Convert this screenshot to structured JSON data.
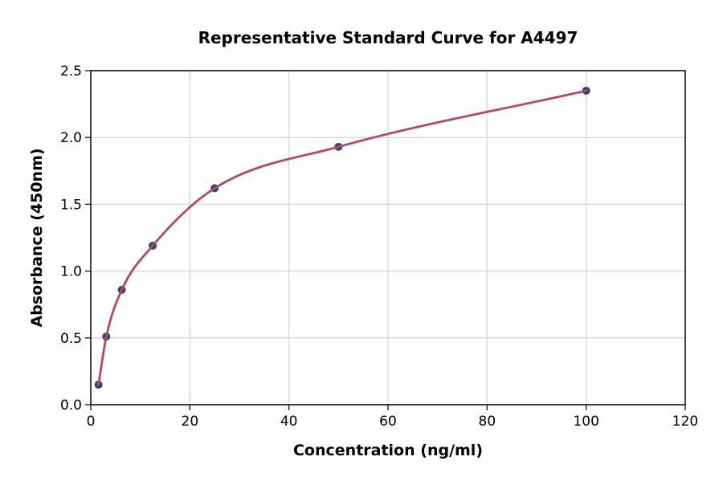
{
  "chart_data": {
    "type": "scatter",
    "title": "Representative Standard Curve for A4497",
    "xlabel": "Concentration (ng/ml)",
    "ylabel": "Absorbance (450nm)",
    "xlim": [
      0,
      120
    ],
    "ylim": [
      0.0,
      2.5
    ],
    "x_ticks": [
      0,
      20,
      40,
      60,
      80,
      100,
      120
    ],
    "x_tick_labels": [
      "0",
      "20",
      "40",
      "60",
      "80",
      "100",
      "120"
    ],
    "y_ticks": [
      0.0,
      0.5,
      1.0,
      1.5,
      2.0,
      2.5
    ],
    "y_tick_labels": [
      "0.0",
      "0.5",
      "1.0",
      "1.5",
      "2.0",
      "2.5"
    ],
    "grid": true,
    "legend": "none",
    "series": [
      {
        "name": "standard-points-with-fit-curve",
        "x": [
          1.56,
          3.13,
          6.25,
          12.5,
          25,
          50,
          100
        ],
        "y": [
          0.15,
          0.51,
          0.86,
          1.19,
          1.62,
          1.93,
          2.35
        ]
      }
    ],
    "colors": {
      "curve": "#b5476d",
      "marker": "#2e4a66",
      "grid": "#cccccc",
      "spine": "#222222",
      "text": "#000000",
      "background": "#ffffff"
    }
  }
}
